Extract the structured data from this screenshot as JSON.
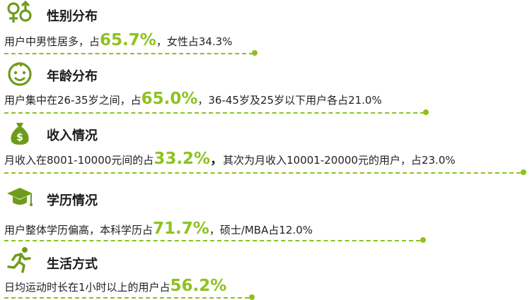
{
  "colors": {
    "accent": "#8dc21f",
    "icon": "#6e9b1c",
    "text": "#222222"
  },
  "sections": [
    {
      "icon": "gender-icon",
      "title": "性别分布",
      "pre": "用户中男性居多，占",
      "value": "65.7%",
      "post": "，女性占34.3%"
    },
    {
      "icon": "baby-face-icon",
      "title": "年龄分布",
      "pre": "用户集中在26-35岁之间，占",
      "value": "65.0%",
      "post": "，36-45岁及25岁以下用户各占21.0%"
    },
    {
      "icon": "money-bag-icon",
      "title": "收入情况",
      "pre": "月收入在8001-10000元间的占",
      "value": "33.2%",
      "comma": "，",
      "post": "其次为月收入10001-20000元的用户，占23.0%"
    },
    {
      "icon": "graduation-cap-icon",
      "title": "学历情况",
      "pre": "用户整体学历偏高，本科学历占",
      "value": "71.7%",
      "post": "，硕士/MBA占12.0%"
    },
    {
      "icon": "running-person-icon",
      "title": "生活方式",
      "pre": "日均运动时长在1小时以上的用户占",
      "value": "56.2%",
      "post": ""
    }
  ]
}
